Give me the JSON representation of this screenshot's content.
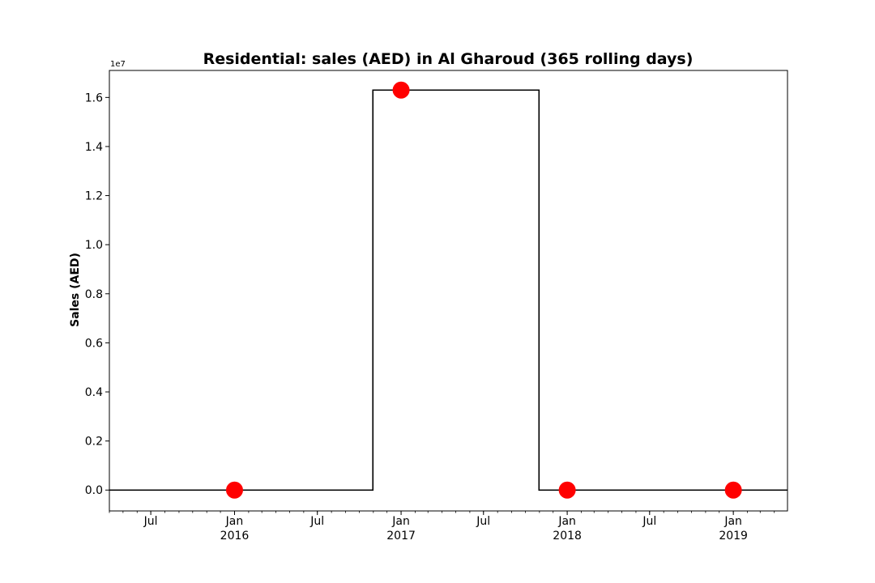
{
  "chart_data": {
    "type": "line",
    "title": "Residential: sales (AED) in Al Gharoud (365 rolling days)",
    "xlabel": "",
    "ylabel": "Sales (AED)",
    "y_offset_label": "1e7",
    "y_multiplier": 10000000,
    "xlim": [
      "2015-04-01",
      "2019-04-30"
    ],
    "ylim": [
      -0.085,
      1.71
    ],
    "yticks": [
      0.0,
      0.2,
      0.4,
      0.6,
      0.8,
      1.0,
      1.2,
      1.4,
      1.6
    ],
    "ytick_labels": [
      "0.0",
      "0.2",
      "0.4",
      "0.6",
      "0.8",
      "1.0",
      "1.2",
      "1.4",
      "1.6"
    ],
    "xticks_major": [
      {
        "date": "2015-07-01",
        "label": "Jul",
        "sublabel": ""
      },
      {
        "date": "2016-01-01",
        "label": "Jan",
        "sublabel": "2016"
      },
      {
        "date": "2016-07-01",
        "label": "Jul",
        "sublabel": ""
      },
      {
        "date": "2017-01-01",
        "label": "Jan",
        "sublabel": "2017"
      },
      {
        "date": "2017-07-01",
        "label": "Jul",
        "sublabel": ""
      },
      {
        "date": "2018-01-01",
        "label": "Jan",
        "sublabel": "2018"
      },
      {
        "date": "2018-07-01",
        "label": "Jul",
        "sublabel": ""
      },
      {
        "date": "2019-01-01",
        "label": "Jan",
        "sublabel": "2019"
      }
    ],
    "series": [
      {
        "line": [
          {
            "x": "2015-04-01",
            "y": 0
          },
          {
            "x": "2016-10-31",
            "y": 0
          },
          {
            "x": "2016-10-31",
            "y": 1.63
          },
          {
            "x": "2017-10-31",
            "y": 1.63
          },
          {
            "x": "2017-10-31",
            "y": 0
          },
          {
            "x": "2019-04-30",
            "y": 0
          }
        ],
        "line_color": "#000000"
      },
      {
        "points": [
          {
            "x": "2016-01-01",
            "y": 0
          },
          {
            "x": "2017-01-01",
            "y": 1.63
          },
          {
            "x": "2018-01-01",
            "y": 0
          },
          {
            "x": "2019-01-01",
            "y": 0
          }
        ],
        "marker_color": "#ff0000"
      }
    ],
    "grid": false,
    "legend": "none"
  }
}
